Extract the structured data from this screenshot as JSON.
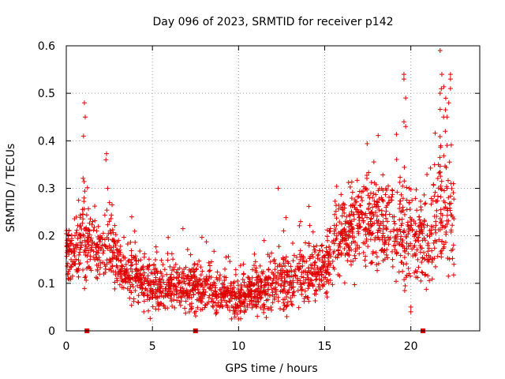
{
  "chart_data": {
    "type": "scatter",
    "title": "Day 096 of 2023, SRMTID for receiver p142",
    "xlabel": "GPS time / hours",
    "ylabel": "SRMTID / TECUs",
    "xlim": [
      0,
      24
    ],
    "ylim": [
      0,
      0.6
    ],
    "x_ticks": [
      0,
      5,
      10,
      15,
      20
    ],
    "y_ticks": [
      0,
      0.1,
      0.2,
      0.3,
      0.4,
      0.5,
      0.6
    ],
    "x_tick_labels": [
      "0",
      "5",
      "10",
      "15",
      "20"
    ],
    "y_tick_labels": [
      "0",
      "0.1",
      "0.2",
      "0.3",
      "0.4",
      "0.5",
      "0.6"
    ],
    "grid": true,
    "marker": "plus",
    "color": "#e00000",
    "gap_markers_x": [
      1.2,
      7.5,
      20.7
    ],
    "series": [
      {
        "name": "SRMTID",
        "profile_hours": [
          0,
          0.5,
          1,
          1.5,
          2,
          2.5,
          3,
          3.5,
          4,
          4.5,
          5,
          6,
          7,
          8,
          9,
          10,
          11,
          12,
          13,
          14,
          15,
          15.5,
          16,
          17,
          18,
          19,
          20,
          21,
          21.5,
          22,
          22.5
        ],
        "profile_median": [
          0.18,
          0.16,
          0.2,
          0.18,
          0.16,
          0.19,
          0.13,
          0.11,
          0.12,
          0.1,
          0.09,
          0.09,
          0.09,
          0.09,
          0.08,
          0.07,
          0.08,
          0.1,
          0.11,
          0.12,
          0.13,
          0.17,
          0.2,
          0.22,
          0.23,
          0.22,
          0.2,
          0.18,
          0.22,
          0.28,
          0.22
        ],
        "profile_spread": [
          0.05,
          0.05,
          0.09,
          0.05,
          0.05,
          0.07,
          0.05,
          0.04,
          0.05,
          0.04,
          0.04,
          0.04,
          0.04,
          0.04,
          0.04,
          0.03,
          0.04,
          0.05,
          0.05,
          0.05,
          0.05,
          0.06,
          0.07,
          0.07,
          0.08,
          0.08,
          0.08,
          0.07,
          0.09,
          0.12,
          0.1
        ],
        "peak_points": [
          {
            "x": 1.0,
            "y": 0.41
          },
          {
            "x": 1.1,
            "y": 0.45
          },
          {
            "x": 1.05,
            "y": 0.48
          },
          {
            "x": 2.3,
            "y": 0.36
          },
          {
            "x": 2.4,
            "y": 0.3
          },
          {
            "x": 3.8,
            "y": 0.24
          },
          {
            "x": 12.3,
            "y": 0.3
          },
          {
            "x": 13.6,
            "y": 0.23
          },
          {
            "x": 17.4,
            "y": 0.3
          },
          {
            "x": 19.6,
            "y": 0.54
          },
          {
            "x": 19.6,
            "y": 0.53
          },
          {
            "x": 19.7,
            "y": 0.49
          },
          {
            "x": 19.6,
            "y": 0.44
          },
          {
            "x": 19.7,
            "y": 0.43
          },
          {
            "x": 19.9,
            "y": 0.3
          },
          {
            "x": 20.0,
            "y": 0.05
          },
          {
            "x": 20.0,
            "y": 0.04
          },
          {
            "x": 21.7,
            "y": 0.59
          },
          {
            "x": 21.8,
            "y": 0.54
          },
          {
            "x": 21.7,
            "y": 0.5
          },
          {
            "x": 21.9,
            "y": 0.45
          },
          {
            "x": 22.1,
            "y": 0.45
          },
          {
            "x": 22.2,
            "y": 0.48
          },
          {
            "x": 22.3,
            "y": 0.54
          },
          {
            "x": 22.3,
            "y": 0.53
          },
          {
            "x": 22.3,
            "y": 0.51
          },
          {
            "x": 22.0,
            "y": 0.42
          },
          {
            "x": 21.6,
            "y": 0.35
          },
          {
            "x": 22.5,
            "y": 0.14
          },
          {
            "x": 10.0,
            "y": 0.025
          },
          {
            "x": 12.8,
            "y": 0.03
          },
          {
            "x": 4.5,
            "y": 0.04
          }
        ]
      }
    ]
  }
}
